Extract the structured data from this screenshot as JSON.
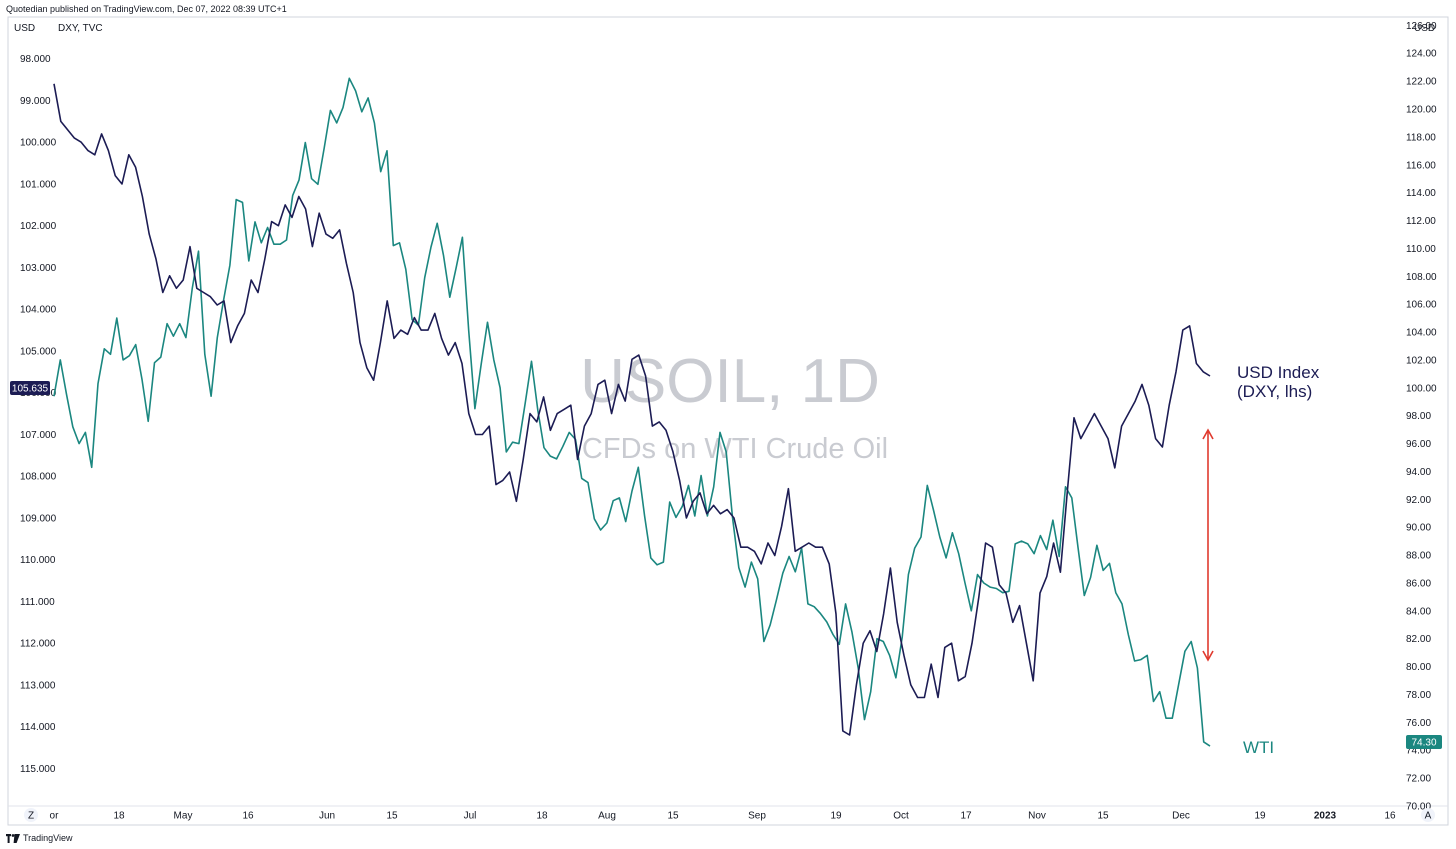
{
  "header": {
    "published": "Quotedian published on TradingView.com, Dec 07, 2022 08:39 UTC+1",
    "currency_left": "USD",
    "symbol_left": "DXY, TVC",
    "currency_right": "USD"
  },
  "watermark": {
    "symbol": "USOIL, 1D",
    "description": "CFDs on WTI Crude Oil"
  },
  "annotations": {
    "usd_line1": "USD Index",
    "usd_line2": "(DXY, lhs)",
    "wti": "WTI"
  },
  "footer": {
    "brand": "TradingView",
    "zoom_button": "Z",
    "auto_button": "A"
  },
  "colors": {
    "dxy": "#1c1c54",
    "wti": "#1b8780",
    "arrow": "#e03a2e"
  },
  "chart_data": {
    "type": "line",
    "x_tick_labels": [
      "or",
      "18",
      "May",
      "16",
      "Jun",
      "15",
      "Jul",
      "18",
      "Aug",
      "15",
      "Sep",
      "19",
      "Oct",
      "17",
      "Nov",
      "15",
      "Dec",
      "19",
      "2023",
      "16"
    ],
    "y_left": {
      "label": "USD",
      "inverted": true,
      "range": [
        97.0,
        115.9
      ],
      "ticks": [
        "98.000",
        "99.000",
        "100.000",
        "101.000",
        "102.000",
        "103.000",
        "104.000",
        "105.000",
        "106.000",
        "107.000",
        "108.000",
        "109.000",
        "110.000",
        "111.000",
        "112.000",
        "113.000",
        "114.000",
        "115.000"
      ],
      "last_value": "105.635"
    },
    "y_right": {
      "label": "USD",
      "range": [
        70.0,
        126.6
      ],
      "ticks": [
        "126.00",
        "124.00",
        "122.00",
        "120.00",
        "118.00",
        "116.00",
        "114.00",
        "112.00",
        "110.00",
        "108.00",
        "106.00",
        "104.00",
        "102.00",
        "100.00",
        "98.00",
        "96.00",
        "94.00",
        "92.00",
        "90.00",
        "88.00",
        "86.00",
        "84.00",
        "82.00",
        "80.00",
        "78.00",
        "76.00",
        "74.00",
        "72.00",
        "70.00"
      ],
      "last_value": "74.30"
    },
    "series": [
      {
        "name": "DXY",
        "axis": "left",
        "values": [
          98.6,
          99.5,
          99.7,
          99.9,
          100.0,
          100.2,
          100.3,
          99.8,
          100.2,
          100.8,
          101.0,
          100.3,
          100.6,
          101.3,
          102.2,
          102.8,
          103.6,
          103.2,
          103.5,
          103.3,
          102.5,
          103.5,
          103.6,
          103.7,
          103.9,
          103.8,
          104.8,
          104.4,
          104.1,
          103.3,
          103.6,
          102.8,
          101.9,
          102.0,
          101.5,
          101.8,
          101.3,
          101.6,
          102.5,
          101.7,
          102.2,
          102.3,
          102.1,
          102.9,
          103.6,
          104.8,
          105.4,
          105.7,
          104.8,
          103.8,
          104.7,
          104.5,
          104.6,
          104.2,
          104.5,
          104.5,
          104.1,
          104.7,
          105.1,
          104.8,
          105.3,
          106.5,
          107.0,
          107.0,
          106.8,
          108.2,
          108.1,
          107.9,
          108.6,
          107.6,
          106.5,
          106.7,
          106.1,
          106.9,
          106.5,
          106.4,
          106.3,
          107.6,
          106.8,
          106.5,
          105.8,
          105.7,
          106.5,
          105.8,
          106.2,
          105.2,
          105.1,
          105.6,
          106.8,
          106.7,
          106.9,
          107.4,
          108.1,
          109.0,
          108.6,
          108.4,
          108.9,
          108.7,
          108.9,
          108.8,
          109.0,
          109.7,
          109.7,
          109.8,
          110.1,
          109.6,
          109.9,
          109.2,
          108.3,
          109.8,
          109.7,
          109.6,
          109.7,
          109.7,
          110.1,
          111.3,
          114.1,
          114.2,
          113.0,
          112.0,
          111.7,
          112.2,
          111.3,
          110.2,
          111.5,
          112.3,
          113.0,
          113.3,
          113.3,
          112.5,
          113.3,
          112.1,
          112.0,
          112.9,
          112.8,
          112.0,
          110.9,
          109.6,
          109.7,
          110.6,
          110.8,
          111.5,
          111.1,
          112.0,
          112.9,
          110.8,
          110.4,
          109.6,
          110.3,
          108.4,
          106.6,
          107.1,
          106.8,
          106.5,
          106.8,
          107.1,
          107.8,
          106.8,
          106.5,
          106.2,
          105.8,
          106.3,
          107.1,
          107.3,
          106.3,
          105.5,
          104.5,
          104.4,
          105.3,
          105.5,
          105.6
        ]
      },
      {
        "name": "WTI",
        "axis": "right",
        "values": [
          99.4,
          102.0,
          99.5,
          97.2,
          96.0,
          96.8,
          94.3,
          100.3,
          102.8,
          102.4,
          105.0,
          102.0,
          102.3,
          103.1,
          100.6,
          97.6,
          101.8,
          102.2,
          104.6,
          103.7,
          104.6,
          103.6,
          107.1,
          109.8,
          102.4,
          99.4,
          103.6,
          106.3,
          108.8,
          113.5,
          113.3,
          109.1,
          111.9,
          110.4,
          111.5,
          110.3,
          110.3,
          110.6,
          113.8,
          114.9,
          117.6,
          115.0,
          114.6,
          117.2,
          119.9,
          119.0,
          120.1,
          122.2,
          121.3,
          119.8,
          120.8,
          119.0,
          115.5,
          117.0,
          110.2,
          110.4,
          108.5,
          104.9,
          104.5,
          107.9,
          110.1,
          111.8,
          109.5,
          106.5,
          108.6,
          110.8,
          104.1,
          98.5,
          101.7,
          104.7,
          102.0,
          100.0,
          95.4,
          96.1,
          96.0,
          98.9,
          101.9,
          98.4,
          95.7,
          95.1,
          94.9,
          95.8,
          96.8,
          96.3,
          93.5,
          93.2,
          90.6,
          89.8,
          90.3,
          91.9,
          92.1,
          90.4,
          92.6,
          94.3,
          90.8,
          87.8,
          87.3,
          87.5,
          91.8,
          90.7,
          91.5,
          93.0,
          90.8,
          93.7,
          90.8,
          92.9,
          96.8,
          95.4,
          90.7,
          87.1,
          85.7,
          87.5,
          86.3,
          81.8,
          83.0,
          84.8,
          86.7,
          87.9,
          86.8,
          88.5,
          84.5,
          84.3,
          83.8,
          83.2,
          82.3,
          81.6,
          84.5,
          82.5,
          79.9,
          76.2,
          78.2,
          82.0,
          81.8,
          80.8,
          79.2,
          82.1,
          86.6,
          88.5,
          89.3,
          93.0,
          91.2,
          89.3,
          87.8,
          89.6,
          88.1,
          86.0,
          84.0,
          86.6,
          86.0,
          85.7,
          85.6,
          85.3,
          85.4,
          88.8,
          89.0,
          88.8,
          88.1,
          89.4,
          88.4,
          90.5,
          87.9,
          92.9,
          92.1,
          88.5,
          85.1,
          86.4,
          88.7,
          86.9,
          87.4,
          85.3,
          84.5,
          82.3,
          80.4,
          80.5,
          80.8,
          77.5,
          78.2,
          76.3,
          76.3,
          78.7,
          81.1,
          81.8,
          79.9,
          74.6,
          74.3
        ]
      }
    ],
    "grid": false,
    "legend": "none"
  }
}
